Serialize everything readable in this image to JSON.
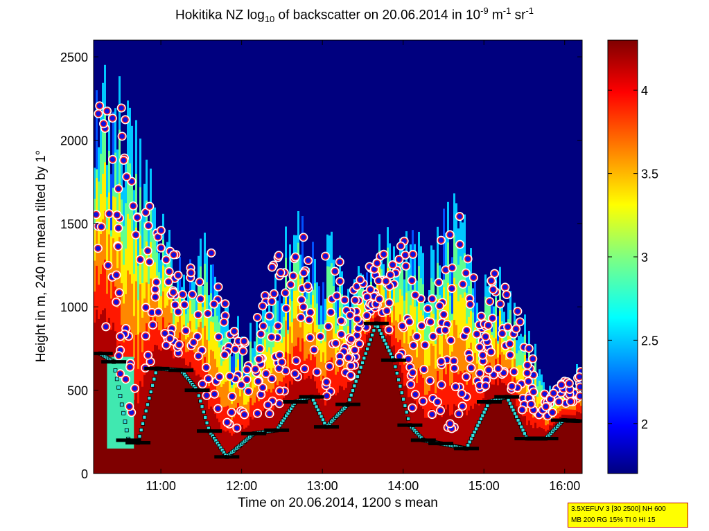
{
  "chart_data": {
    "type": "heatmap",
    "title": {
      "prefix": "Hokitika NZ log",
      "log_base": "10",
      "middle": " of backscatter on 20.06.2014 in 10",
      "exp1": "-9",
      "unit1": " m",
      "exp2": "-1",
      "unit2": " sr",
      "exp3": "-1"
    },
    "xlabel": "Time on 20.06.2014, 1200 s mean",
    "ylabel": "Height in m, 240 m mean tilted by 1°",
    "xlim": [
      "10:10",
      "16:13"
    ],
    "ylim": [
      0,
      2600
    ],
    "x_ticks": [
      "11:00",
      "12:00",
      "13:00",
      "14:00",
      "15:00",
      "16:00"
    ],
    "y_ticks": [
      0,
      500,
      1000,
      1500,
      2000,
      2500
    ],
    "colorbar": {
      "colormap": "jet",
      "range": [
        1.7,
        4.3
      ],
      "ticks": [
        2,
        2.5,
        3,
        3.5,
        4
      ],
      "tick_labels": [
        "2",
        "2.5",
        "3",
        "3.5",
        "4"
      ]
    },
    "background_value_color": "#00007f",
    "surface_layer_color": "#7f0000",
    "low_cloud_base": [
      {
        "time": "10:15",
        "height": 720
      },
      {
        "time": "10:25",
        "height": 670
      },
      {
        "time": "10:36",
        "height": 200
      },
      {
        "time": "10:43",
        "height": 185
      },
      {
        "time": "10:57",
        "height": 630
      },
      {
        "time": "11:15",
        "height": 620
      },
      {
        "time": "11:27",
        "height": 500
      },
      {
        "time": "11:36",
        "height": 255
      },
      {
        "time": "11:49",
        "height": 100
      },
      {
        "time": "12:09",
        "height": 240
      },
      {
        "time": "12:26",
        "height": 260
      },
      {
        "time": "12:40",
        "height": 430
      },
      {
        "time": "12:52",
        "height": 460
      },
      {
        "time": "13:03",
        "height": 280
      },
      {
        "time": "13:19",
        "height": 415
      },
      {
        "time": "13:40",
        "height": 900
      },
      {
        "time": "13:53",
        "height": 680
      },
      {
        "time": "14:05",
        "height": 290
      },
      {
        "time": "14:15",
        "height": 200
      },
      {
        "time": "14:28",
        "height": 180
      },
      {
        "time": "14:47",
        "height": 150
      },
      {
        "time": "15:04",
        "height": 430
      },
      {
        "time": "15:17",
        "height": 460
      },
      {
        "time": "15:32",
        "height": 210
      },
      {
        "time": "15:46",
        "height": 210
      },
      {
        "time": "15:59",
        "height": 320
      },
      {
        "time": "16:10",
        "height": 315
      }
    ],
    "settings_text": [
      "3.5XEFUV 3 [30 2500] NH 600",
      "MB 200 RG 15% TI 0 HI 15"
    ]
  },
  "colors": {
    "cloud_marker_fill": "#1010e0",
    "cloud_marker_edge": "#ff2020",
    "cloud_marker_halo": "#ffffff",
    "base_marker_fill": "#33e0e0",
    "base_marker_line": "#000000",
    "settings_bg": "#ffff00",
    "settings_border": "#c00000"
  }
}
